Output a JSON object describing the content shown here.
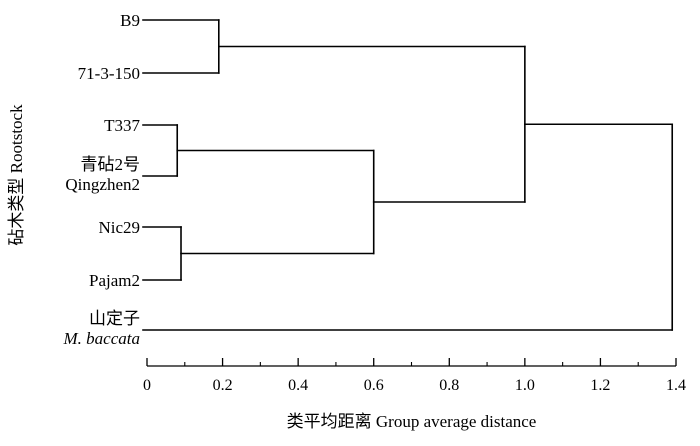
{
  "chart_data": {
    "type": "dendrogram",
    "xlabel": "类平均距离 Group average distance",
    "ylabel": "砧木类型 Rootstock",
    "xlim": [
      0,
      1.4
    ],
    "xticks": [
      "0",
      "0.2",
      "0.4",
      "0.6",
      "0.8",
      "1.0",
      "1.2",
      "1.4"
    ],
    "leaves": [
      {
        "id": "B9",
        "lines": [
          "B9"
        ],
        "italic": false
      },
      {
        "id": "71-3-150",
        "lines": [
          "71-3-150"
        ],
        "italic": false
      },
      {
        "id": "T337",
        "lines": [
          "T337"
        ],
        "italic": false
      },
      {
        "id": "Qingzhen2",
        "lines": [
          "青砧2号",
          "Qingzhen2"
        ],
        "italic": false
      },
      {
        "id": "Nic29",
        "lines": [
          "Nic29"
        ],
        "italic": false
      },
      {
        "id": "Pajam2",
        "lines": [
          "Pajam2"
        ],
        "italic": false
      },
      {
        "id": "M-baccata",
        "lines": [
          "山定子",
          "M. baccata"
        ],
        "italic": true
      }
    ],
    "merges": [
      {
        "id": "m1",
        "children": [
          "B9",
          "71-3-150"
        ],
        "distance": 0.19
      },
      {
        "id": "m2",
        "children": [
          "T337",
          "Qingzhen2"
        ],
        "distance": 0.08
      },
      {
        "id": "m3",
        "children": [
          "Nic29",
          "Pajam2"
        ],
        "distance": 0.09
      },
      {
        "id": "m4",
        "children": [
          "m2",
          "m3"
        ],
        "distance": 0.6
      },
      {
        "id": "m5",
        "children": [
          "m1",
          "m4"
        ],
        "distance": 1.0
      },
      {
        "id": "m6",
        "children": [
          "m5",
          "M-baccata"
        ],
        "distance": 1.39
      }
    ]
  }
}
